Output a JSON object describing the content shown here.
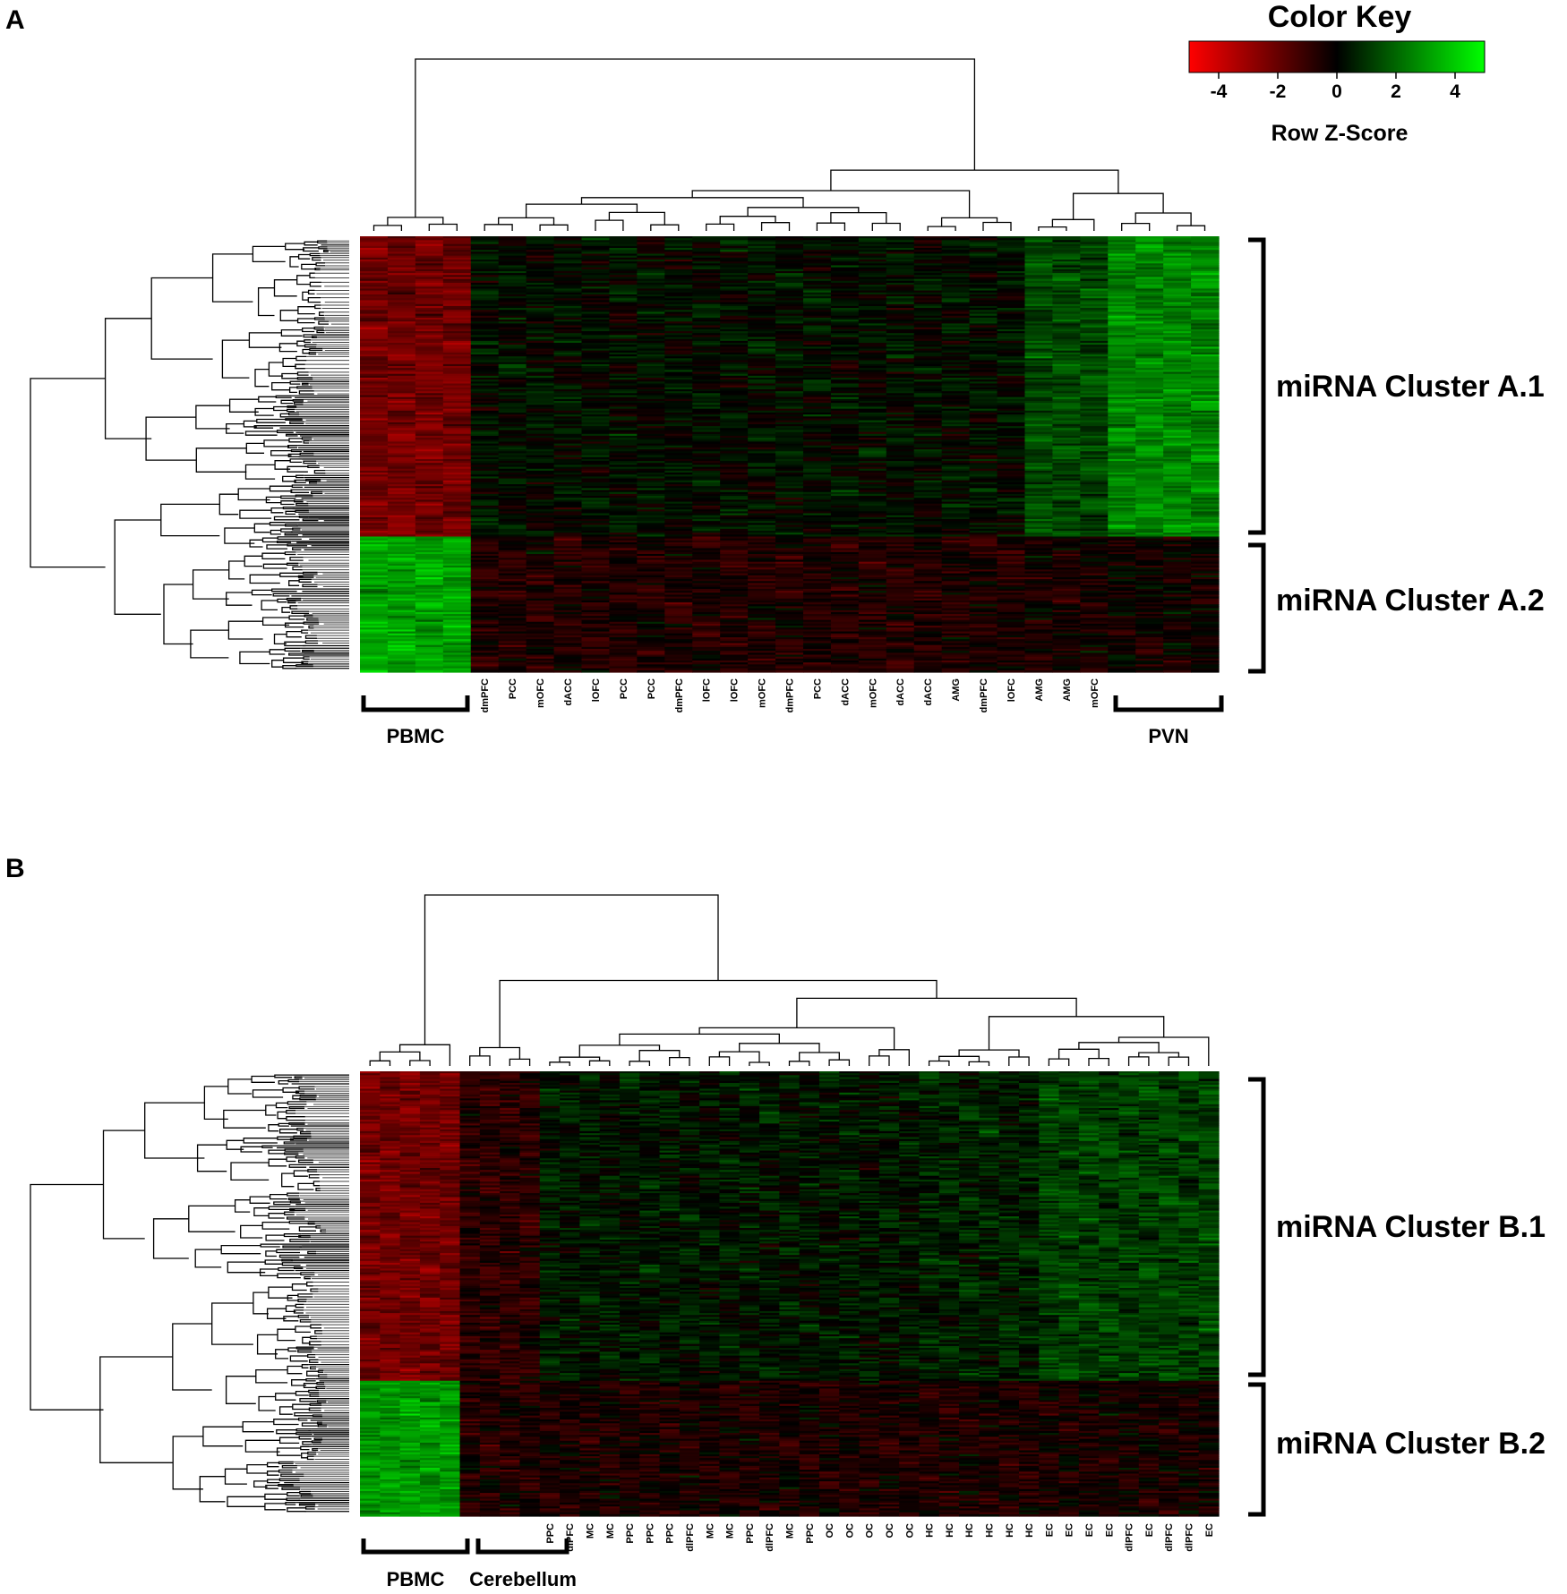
{
  "chart_data": [
    {
      "type": "heatmap",
      "panel": "A",
      "group_labels": [
        "PBMC",
        "PVN"
      ],
      "column_labels": [
        "",
        "",
        "",
        "",
        "dmPFC",
        "PCC",
        "mOFC",
        "dACC",
        "lOFC",
        "PCC",
        "PCC",
        "dmPFC",
        "lOFC",
        "lOFC",
        "mOFC",
        "dmPFC",
        "PCC",
        "dACC",
        "mOFC",
        "dACC",
        "dACC",
        "AMG",
        "dmPFC",
        "lOFC",
        "AMG",
        "AMG",
        "mOFC",
        "",
        "",
        "",
        ""
      ],
      "row_clusters": [
        {
          "name": "miRNA Cluster A.1",
          "rows": 155
        },
        {
          "name": "miRNA Cluster A.2",
          "rows": 70
        }
      ],
      "column_groups": [
        {
          "label": "PBMC",
          "columns": 4,
          "cluster_A1_z": -2.2,
          "cluster_A2_z": 3.2
        },
        {
          "label": "",
          "columns": 20,
          "cluster_A1_z": 0.2,
          "cluster_A2_z": -0.6
        },
        {
          "label": "",
          "columns": 3,
          "cluster_A1_z": 1.4,
          "cluster_A2_z": -0.4
        },
        {
          "label": "PVN",
          "columns": 4,
          "cluster_A1_z": 2.6,
          "cluster_A2_z": -0.2
        }
      ]
    },
    {
      "type": "heatmap",
      "panel": "B",
      "group_labels": [
        "PBMC",
        "Cerebellum"
      ],
      "column_labels": [
        "",
        "",
        "",
        "",
        "",
        "",
        "",
        "",
        "",
        "PPC",
        "dlPFC",
        "MC",
        "MC",
        "PPC",
        "PPC",
        "PPC",
        "dlPFC",
        "MC",
        "MC",
        "PPC",
        "dlPFC",
        "MC",
        "PPC",
        "OC",
        "OC",
        "OC",
        "OC",
        "OC",
        "HC",
        "HC",
        "HC",
        "HC",
        "HC",
        "HC",
        "EC",
        "EC",
        "EC",
        "EC",
        "dlPFC",
        "EC",
        "dlPFC",
        "dlPFC",
        "EC"
      ],
      "row_clusters": [
        {
          "name": "miRNA Cluster B.1",
          "rows": 160
        },
        {
          "name": "miRNA Cluster B.2",
          "rows": 70
        }
      ],
      "column_groups": [
        {
          "label": "PBMC",
          "columns": 5,
          "cluster_B1_z": -2.2,
          "cluster_B2_z": 3.0
        },
        {
          "label": "Cerebellum",
          "columns": 4,
          "cluster_B1_z": -0.8,
          "cluster_B2_z": -0.6
        },
        {
          "label": "",
          "columns": 19,
          "cluster_B1_z": 0.4,
          "cluster_B2_z": -0.5
        },
        {
          "label": "",
          "columns": 6,
          "cluster_B1_z": 0.6,
          "cluster_B2_z": -0.5
        },
        {
          "label": "",
          "columns": 9,
          "cluster_B1_z": 1.2,
          "cluster_B2_z": -0.4
        }
      ]
    }
  ],
  "color_key": {
    "title": "Color Key",
    "label": "Row Z-Score",
    "range": [
      -5,
      5
    ],
    "ticks": [
      -4,
      -2,
      0,
      2,
      4
    ],
    "tick_labels": [
      "-4",
      "-2",
      "0",
      "2",
      "4"
    ],
    "colors": {
      "low": "#ff0000",
      "mid": "#000000",
      "high": "#00ff00"
    }
  },
  "panel_letters": [
    "A",
    "B"
  ]
}
